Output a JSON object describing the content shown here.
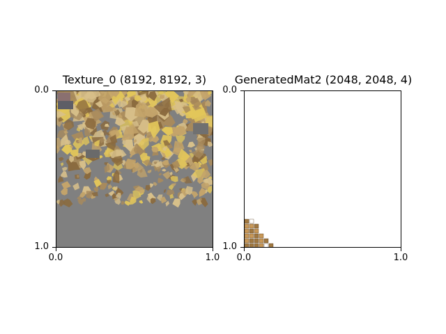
{
  "figure": {
    "panels": [
      {
        "title": "Texture_0 (8192, 8192, 3)",
        "x_ticks": [
          "0.0",
          "1.0"
        ],
        "y_ticks": [
          "0.0",
          "1.0"
        ],
        "image": {
          "description_shape": "texture atlas",
          "filled_fraction_from_top": 0.72,
          "background_color": "#808080",
          "fill_colors": [
            "#a88a5c",
            "#c4a46a",
            "#8a6a3e",
            "#d8c08a",
            "#e2c65a",
            "#6e6e6e"
          ]
        }
      },
      {
        "title": "GeneratedMat2 (2048, 2048, 4)",
        "x_ticks": [
          "0.0",
          "1.0"
        ],
        "y_ticks": [
          "0.0",
          "1.0"
        ],
        "image": {
          "description_shape": "staircase patch bottom-left",
          "background_color": "#ffffff",
          "fill_colors": [
            "#a07840",
            "#c89858",
            "#ffffff"
          ]
        }
      }
    ]
  }
}
